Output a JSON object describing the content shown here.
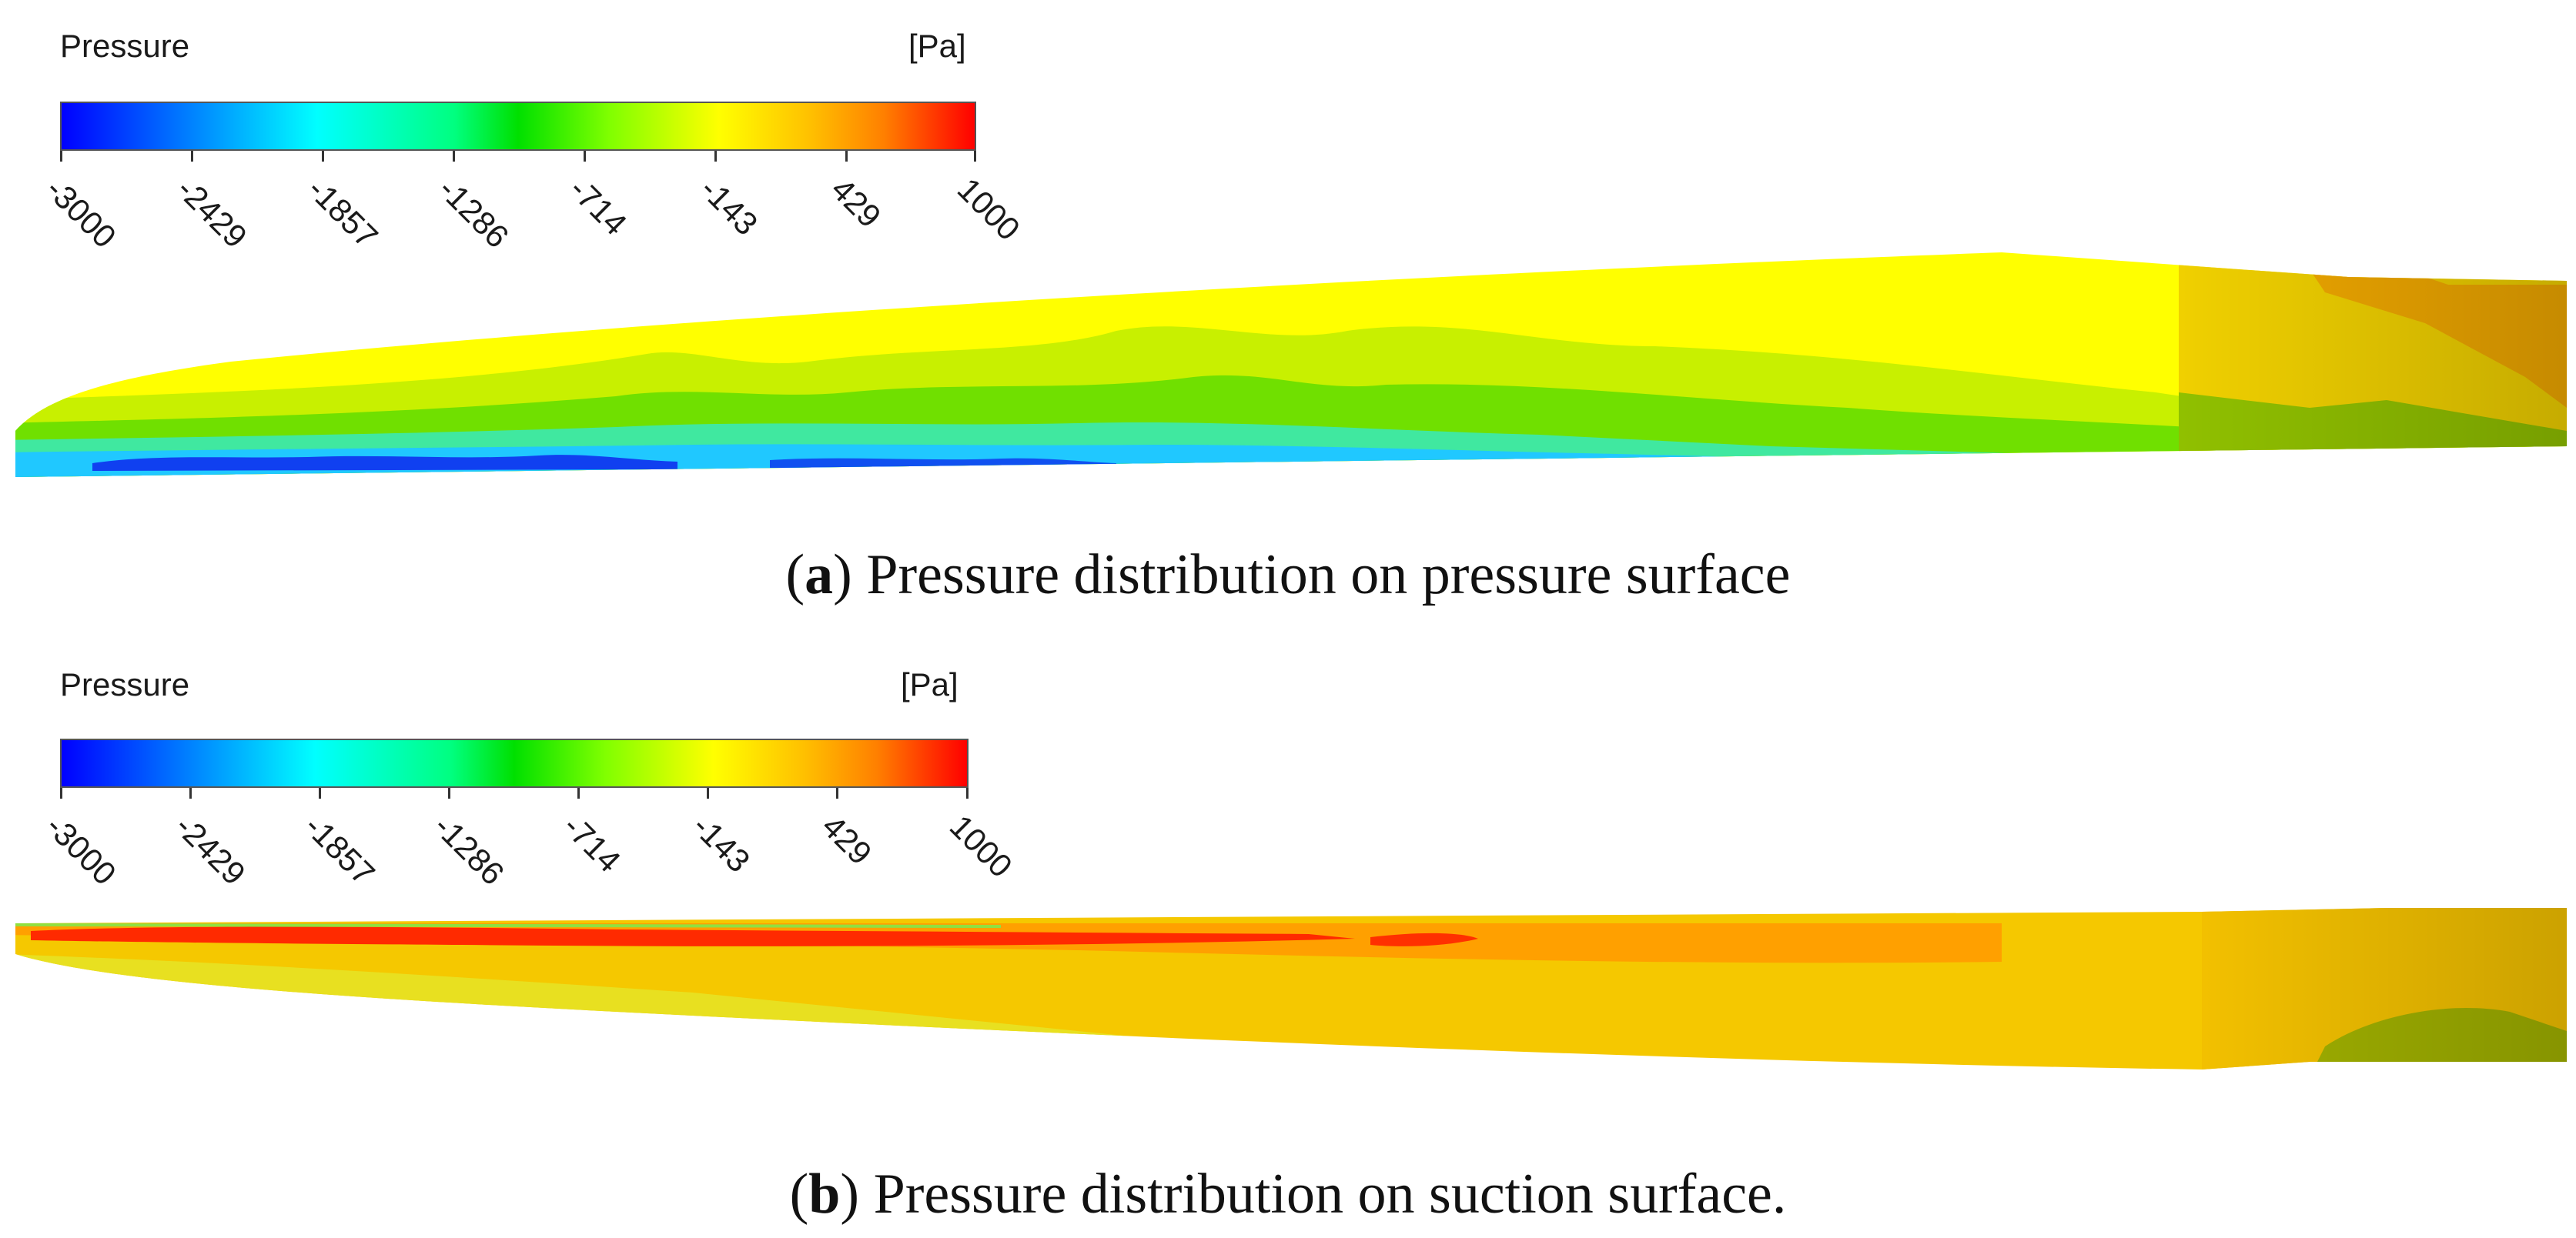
{
  "panels": [
    {
      "id": "a",
      "legend": {
        "title": "Pressure",
        "unit": "[Pa]",
        "ticks": [
          "-3000",
          "-2429",
          "-1857",
          "-1286",
          "-714",
          "-143",
          "429",
          "1000"
        ],
        "range": [
          -3000,
          1000
        ],
        "colors": [
          "#0000ff",
          "#00ffff",
          "#00ff00",
          "#ffff00",
          "#ff0000"
        ]
      },
      "caption": {
        "letter": "a",
        "text": "Pressure distribution on pressure surface"
      }
    },
    {
      "id": "b",
      "legend": {
        "title": "Pressure",
        "unit": "[Pa]",
        "ticks": [
          "-3000",
          "-2429",
          "-1857",
          "-1286",
          "-714",
          "-143",
          "429",
          "1000"
        ],
        "range": [
          -3000,
          1000
        ],
        "colors": [
          "#0000ff",
          "#00ffff",
          "#00ff00",
          "#ffff00",
          "#ff0000"
        ]
      },
      "caption": {
        "letter": "b",
        "text": "Pressure distribution on suction surface."
      }
    }
  ]
}
